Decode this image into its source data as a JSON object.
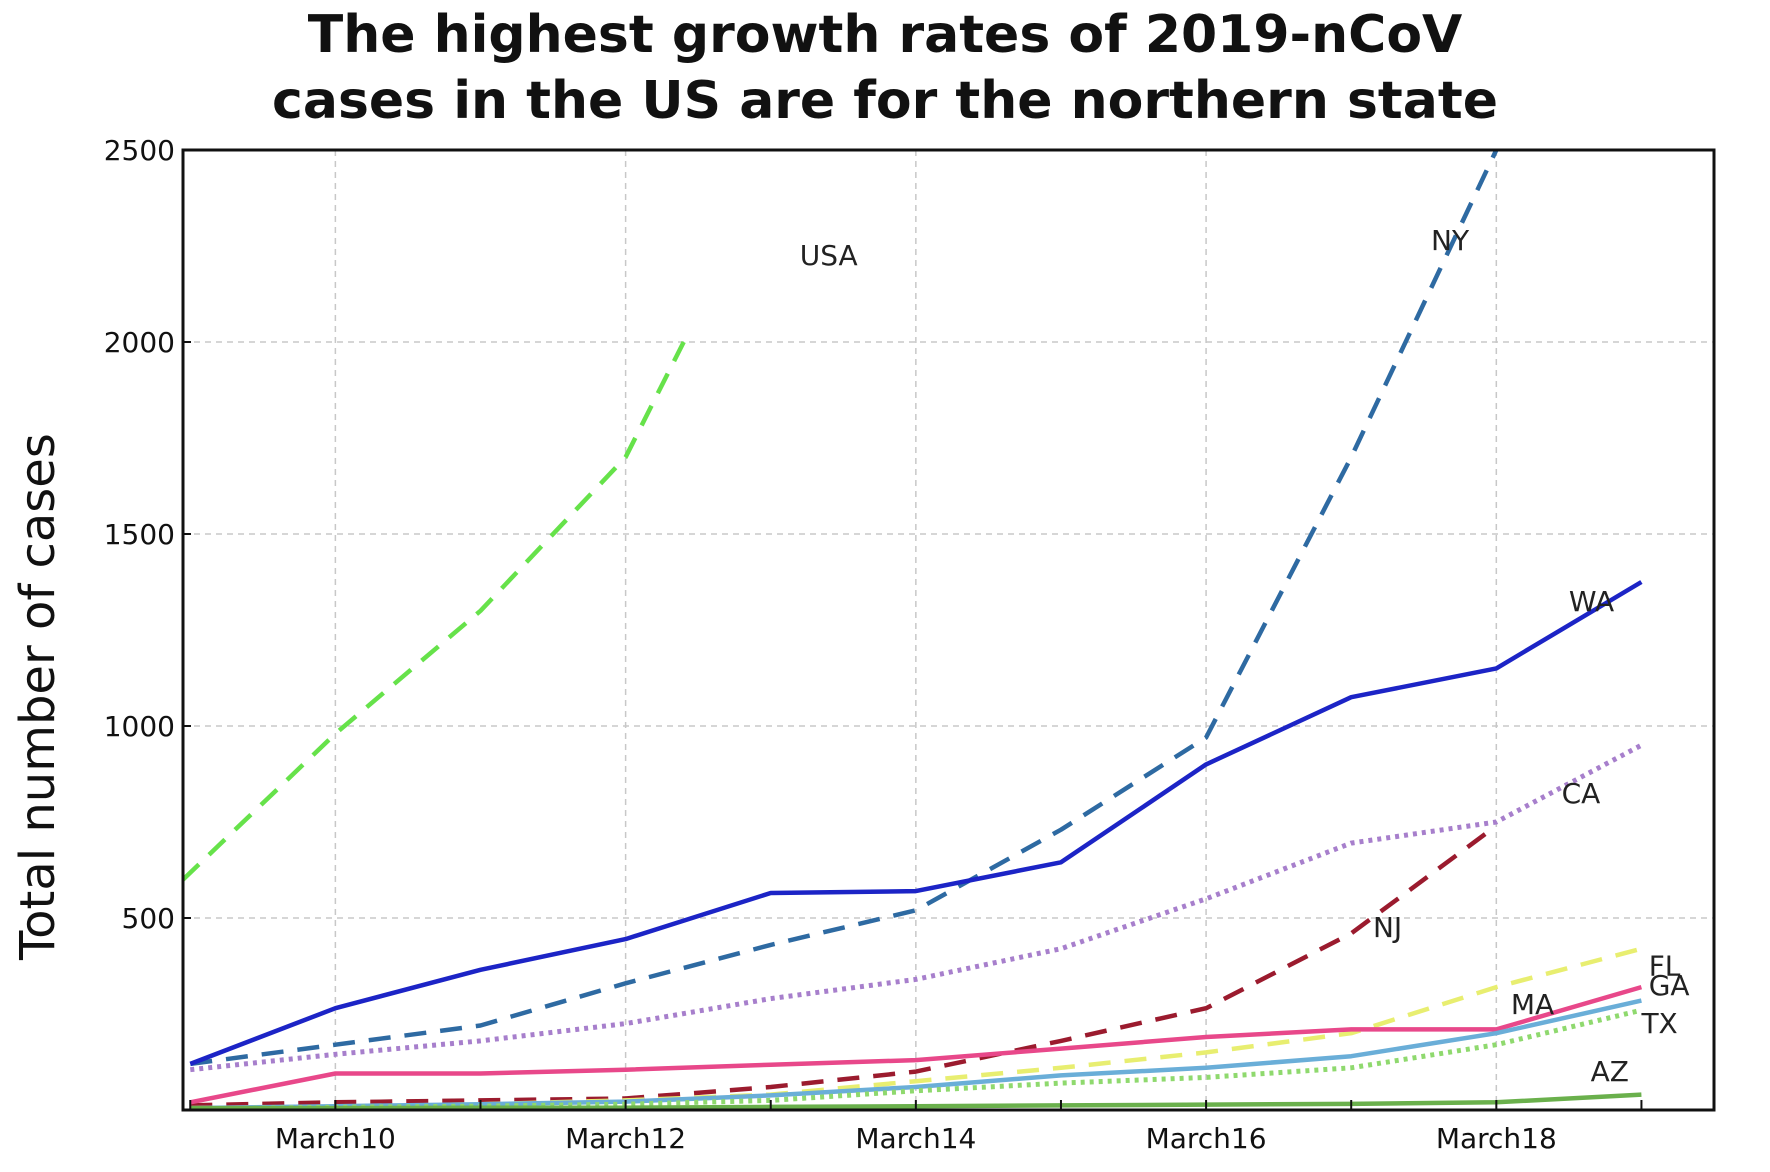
{
  "chart_data": {
    "type": "line",
    "title_line1": "The highest growth rates of 2019-nCoV",
    "title_line2": "cases in the US are for the northern state",
    "xlabel": "",
    "ylabel": "Total number of cases",
    "x_tick_labels": [
      "March10",
      "March12",
      "March14",
      "March16",
      "March18"
    ],
    "x_tick_values": [
      10,
      12,
      14,
      16,
      18
    ],
    "xlim": [
      8.95,
      19.5
    ],
    "ylim": [
      0,
      2500
    ],
    "y_tick_values": [
      500,
      1000,
      1500,
      2000,
      2500
    ],
    "grid": true,
    "legend": "inline labels",
    "series": [
      {
        "name": "USA",
        "color": "#66e24a",
        "style": "dashed",
        "x": [
          8.95,
          10,
          11,
          12,
          12.4
        ],
        "y": [
          600,
          980,
          1300,
          1700,
          2000
        ]
      },
      {
        "name": "NY",
        "color": "#2e6aa2",
        "style": "dashed",
        "x": [
          9,
          10,
          11,
          12,
          13,
          14,
          15,
          16,
          17,
          18
        ],
        "y": [
          120,
          170,
          220,
          330,
          430,
          520,
          730,
          970,
          1700,
          2500
        ]
      },
      {
        "name": "WA",
        "color": "#1c24c6",
        "style": "solid",
        "x": [
          9,
          10,
          11,
          12,
          13,
          14,
          15,
          16,
          17,
          18,
          19
        ],
        "y": [
          120,
          265,
          365,
          445,
          565,
          570,
          645,
          900,
          1075,
          1150,
          1375
        ]
      },
      {
        "name": "CA",
        "color": "#a77fcc",
        "style": "dotted",
        "x": [
          9,
          10,
          11,
          12,
          13,
          14,
          15,
          16,
          17,
          18,
          19
        ],
        "y": [
          105,
          145,
          180,
          225,
          290,
          340,
          420,
          550,
          695,
          750,
          950
        ]
      },
      {
        "name": "NJ",
        "color": "#9b1b2e",
        "style": "dashed",
        "x": [
          9,
          10,
          11,
          12,
          13,
          14,
          15,
          16,
          17,
          18
        ],
        "y": [
          12,
          20,
          25,
          30,
          60,
          100,
          180,
          265,
          460,
          740
        ]
      },
      {
        "name": "FL",
        "color": "#e8ee70",
        "style": "dashed",
        "x": [
          9,
          10,
          11,
          12,
          13,
          14,
          15,
          16,
          17,
          18,
          19
        ],
        "y": [
          5,
          8,
          15,
          25,
          40,
          75,
          110,
          150,
          200,
          320,
          420
        ]
      },
      {
        "name": "MA",
        "color": "#e8488a",
        "style": "solid",
        "x": [
          9,
          10,
          11,
          12,
          13,
          14,
          15,
          16,
          17,
          18,
          19
        ],
        "y": [
          20,
          95,
          95,
          105,
          118,
          130,
          160,
          190,
          210,
          210,
          320
        ]
      },
      {
        "name": "GA",
        "color": "#6aaed8",
        "style": "solid",
        "x": [
          9,
          10,
          11,
          12,
          13,
          14,
          15,
          16,
          17,
          18,
          19
        ],
        "y": [
          5,
          10,
          15,
          22,
          38,
          60,
          90,
          110,
          140,
          200,
          285
        ]
      },
      {
        "name": "TX",
        "color": "#8fd96e",
        "style": "dotted",
        "x": [
          9,
          10,
          11,
          12,
          13,
          14,
          15,
          16,
          17,
          18,
          19
        ],
        "y": [
          3,
          7,
          10,
          15,
          25,
          50,
          70,
          85,
          110,
          170,
          260
        ]
      },
      {
        "name": "AZ",
        "color": "#6ab04c",
        "style": "solid",
        "x": [
          9,
          10,
          11,
          12,
          13,
          14,
          15,
          16,
          17,
          18,
          19
        ],
        "y": [
          5,
          5,
          6,
          6,
          8,
          10,
          12,
          14,
          16,
          20,
          40
        ]
      }
    ],
    "annotations": [
      "USA",
      "NY",
      "WA",
      "CA",
      "NJ",
      "FL",
      "GA",
      "MA",
      "TX",
      "AZ"
    ]
  }
}
